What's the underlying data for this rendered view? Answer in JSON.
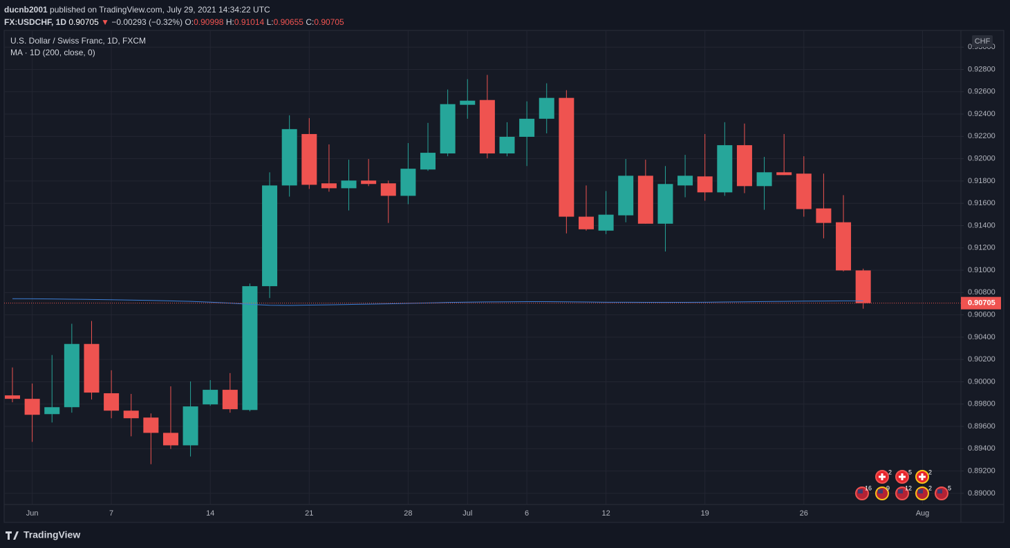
{
  "header": {
    "user": "ducnb2001",
    "published": "published on TradingView.com, July 29, 2021 14:34:22 UTC",
    "symbol": "FX:USDCHF, 1D",
    "arrow": "▼",
    "change": "−0.00293 (−0.32%)",
    "o": "O:",
    "h": "H:",
    "l": "L:",
    "c": "C:"
  },
  "footer": "TradingView",
  "events_top": [
    2,
    5,
    2
  ],
  "events_bottom": [
    16,
    9,
    12,
    2,
    5
  ],
  "chart_data": {
    "type": "candlestick",
    "title": "U.S. Dollar / Swiss Franc, 1D, FXCM",
    "currency": "CHF",
    "categories": [
      "May 31",
      "Jun 1",
      "Jun 2",
      "Jun 3",
      "Jun 4",
      "Jun 7",
      "Jun 8",
      "Jun 9",
      "Jun 10",
      "Jun 11",
      "Jun 14",
      "Jun 15",
      "Jun 16",
      "Jun 17",
      "Jun 18",
      "Jun 21",
      "Jun 22",
      "Jun 23",
      "Jun 24",
      "Jun 25",
      "Jun 28",
      "Jun 29",
      "Jun 30",
      "Jul 1",
      "Jul 2",
      "Jul 5",
      "Jul 6",
      "Jul 7",
      "Jul 8",
      "Jul 9",
      "Jul 12",
      "Jul 13",
      "Jul 14",
      "Jul 15",
      "Jul 16",
      "Jul 19",
      "Jul 20",
      "Jul 21",
      "Jul 22",
      "Jul 23",
      "Jul 26",
      "Jul 27",
      "Jul 28",
      "Jul 29"
    ],
    "open": [
      0.89878,
      0.89847,
      0.8971,
      0.89772,
      0.90339,
      0.89897,
      0.89741,
      0.89679,
      0.89542,
      0.8943,
      0.89797,
      0.89928,
      0.89747,
      0.90857,
      0.9176,
      0.92221,
      0.91779,
      0.91735,
      0.91804,
      0.91779,
      0.91667,
      0.91903,
      0.92047,
      0.92483,
      0.92526,
      0.92047,
      0.92196,
      0.92358,
      0.92545,
      0.9148,
      0.91355,
      0.91492,
      0.91847,
      0.91417,
      0.9176,
      0.91841,
      0.91698,
      0.92121,
      0.91754,
      0.91878,
      0.91866,
      0.91554,
      0.9143,
      0.90998
    ],
    "high": [
      0.90128,
      0.89984,
      0.9024,
      0.9052,
      0.90545,
      0.90103,
      0.89891,
      0.89716,
      0.89959,
      0.90003,
      0.90015,
      0.90078,
      0.90881,
      0.91878,
      0.92389,
      0.92364,
      0.92128,
      0.91991,
      0.91997,
      0.91804,
      0.9214,
      0.92321,
      0.9262,
      0.92713,
      0.92751,
      0.92327,
      0.92514,
      0.92676,
      0.92614,
      0.9176,
      0.9171,
      0.91997,
      0.91991,
      0.91934,
      0.92034,
      0.92221,
      0.92327,
      0.92315,
      0.92016,
      0.92221,
      0.92022,
      0.91866,
      0.91673,
      0.91014
    ],
    "low": [
      0.89816,
      0.89461,
      0.89635,
      0.89723,
      0.89841,
      0.89673,
      0.89511,
      0.89261,
      0.89398,
      0.8933,
      0.89785,
      0.89723,
      0.89735,
      0.90751,
      0.9166,
      0.91729,
      0.91704,
      0.91536,
      0.91754,
      0.91424,
      0.91592,
      0.91891,
      0.92022,
      0.92358,
      0.92003,
      0.92022,
      0.91934,
      0.92227,
      0.9133,
      0.91355,
      0.91324,
      0.9143,
      0.91417,
      0.91168,
      0.91654,
      0.91623,
      0.91667,
      0.91691,
      0.91542,
      0.91853,
      0.9148,
      0.91286,
      0.9099,
      0.90655
    ],
    "close": [
      0.89847,
      0.89704,
      0.89772,
      0.90339,
      0.89903,
      0.89741,
      0.89673,
      0.89542,
      0.8943,
      0.89779,
      0.89928,
      0.89754,
      0.90857,
      0.9176,
      0.92265,
      0.91766,
      0.91735,
      0.91804,
      0.91773,
      0.91667,
      0.9191,
      0.92053,
      0.92489,
      0.9252,
      0.92047,
      0.92196,
      0.92358,
      0.92545,
      0.9148,
      0.91367,
      0.91498,
      0.91847,
      0.91417,
      0.91773,
      0.91847,
      0.91698,
      0.92121,
      0.91754,
      0.91878,
      0.91853,
      0.91548,
      0.91424,
      0.90998,
      0.90705
    ],
    "up_color": "#26a69a",
    "down_color": "#ef5350",
    "series": [
      {
        "name": "MA · 1D (200, close, 0)",
        "color": "#3d7fd6",
        "values": [
          0.90745,
          0.90744,
          0.90742,
          0.9074,
          0.90738,
          0.90735,
          0.90732,
          0.90729,
          0.90725,
          0.90721,
          0.90714,
          0.90705,
          0.90694,
          0.90686,
          0.90684,
          0.90687,
          0.9069,
          0.90693,
          0.90696,
          0.90699,
          0.90703,
          0.90707,
          0.90711,
          0.90714,
          0.90716,
          0.90717,
          0.90718,
          0.90718,
          0.90717,
          0.90715,
          0.90713,
          0.90713,
          0.90712,
          0.90712,
          0.90712,
          0.90713,
          0.90715,
          0.90717,
          0.90719,
          0.90721,
          0.90723,
          0.90724,
          0.90725,
          0.90725
        ]
      }
    ],
    "ylim": [
      0.889,
      0.9315
    ],
    "yticks": [
      {
        "value": 0.89,
        "label": "0.89000"
      },
      {
        "value": 0.892,
        "label": "0.89200"
      },
      {
        "value": 0.894,
        "label": "0.89400"
      },
      {
        "value": 0.896,
        "label": "0.89600"
      },
      {
        "value": 0.898,
        "label": "0.89800"
      },
      {
        "value": 0.9,
        "label": "0.90000"
      },
      {
        "value": 0.902,
        "label": "0.90200"
      },
      {
        "value": 0.904,
        "label": "0.90400"
      },
      {
        "value": 0.906,
        "label": "0.90600"
      },
      {
        "value": 0.908,
        "label": "0.90800"
      },
      {
        "value": 0.91,
        "label": "0.91000"
      },
      {
        "value": 0.912,
        "label": "0.91200"
      },
      {
        "value": 0.914,
        "label": "0.91400"
      },
      {
        "value": 0.916,
        "label": "0.91600"
      },
      {
        "value": 0.918,
        "label": "0.91800"
      },
      {
        "value": 0.92,
        "label": "0.92000"
      },
      {
        "value": 0.922,
        "label": "0.92200"
      },
      {
        "value": 0.924,
        "label": "0.92400"
      },
      {
        "value": 0.926,
        "label": "0.92600"
      },
      {
        "value": 0.928,
        "label": "0.92800"
      },
      {
        "value": 0.93,
        "label": "0.93000"
      }
    ],
    "xticks": [
      {
        "value": 1,
        "label": "Jun"
      },
      {
        "value": 5,
        "label": "7"
      },
      {
        "value": 10,
        "label": "14"
      },
      {
        "value": 15,
        "label": "21"
      },
      {
        "value": 20,
        "label": "28"
      },
      {
        "value": 23,
        "label": "Jul"
      },
      {
        "value": 26,
        "label": "6"
      },
      {
        "value": 30,
        "label": "12"
      },
      {
        "value": 35,
        "label": "19"
      },
      {
        "value": 40,
        "label": "26"
      },
      {
        "value": 46,
        "label": "Aug"
      }
    ],
    "grid": true
  }
}
